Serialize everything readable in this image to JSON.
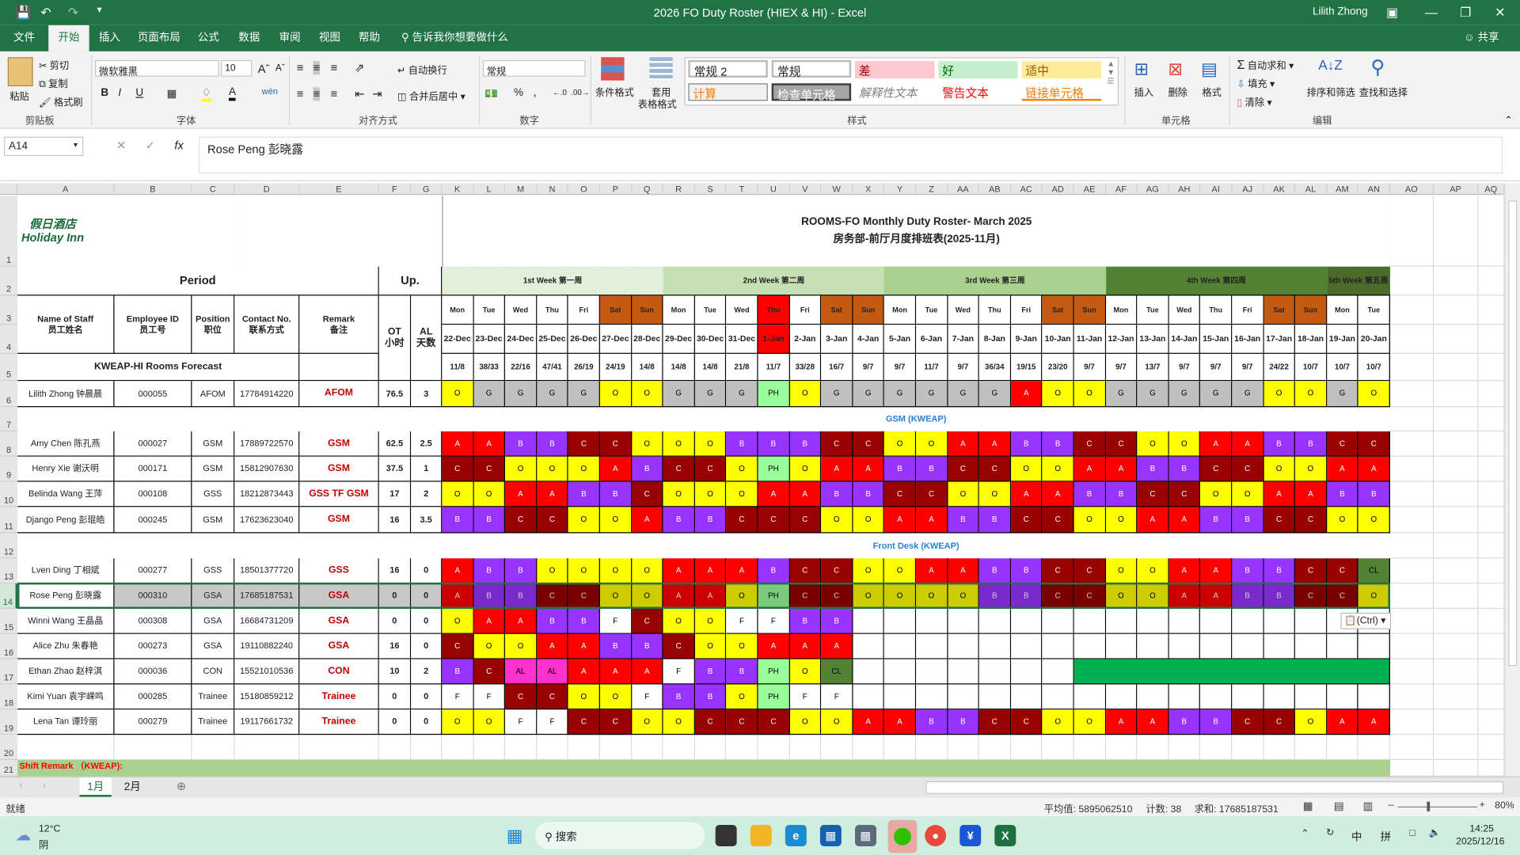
{
  "window": {
    "title": "2026 FO Duty Roster (HIEX & HI)  -  Excel",
    "user": "Lilith Zhong",
    "share": "共享"
  },
  "menu": {
    "tabs": [
      "文件",
      "开始",
      "插入",
      "页面布局",
      "公式",
      "数据",
      "审阅",
      "视图",
      "帮助"
    ],
    "active": "开始",
    "tell_me": "告诉我你想要做什么"
  },
  "ribbon": {
    "clipboard": {
      "paste": "粘贴",
      "cut": "剪切",
      "copy": "复制",
      "format_painter": "格式刷",
      "label": "剪贴板"
    },
    "font": {
      "name": "微软雅黑",
      "size": "10",
      "bold": "B",
      "italic": "I",
      "underline": "U",
      "label": "字体"
    },
    "alignment": {
      "wrap": "自动换行",
      "merge": "合并后居中",
      "label": "对齐方式"
    },
    "number": {
      "format": "常规",
      "percent": "%",
      "comma": ",",
      "label": "数字"
    },
    "styles": {
      "conditional": "条件格式",
      "table_line1": "套用",
      "table_line2": "表格格式",
      "normal2": "常规 2",
      "normal": "常规",
      "bad": "差",
      "good": "好",
      "neutral": "适中",
      "calc": "计算",
      "check": "检查单元格",
      "explanatory": "解释性文本",
      "warning": "警告文本",
      "linked": "链接单元格",
      "label": "样式"
    },
    "cells": {
      "insert": "插入",
      "delete": "删除",
      "format": "格式",
      "label": "单元格"
    },
    "editing": {
      "autosum": "自动求和",
      "fill": "填充",
      "clear": "清除",
      "sort": "排序和筛选",
      "find": "查找和选择",
      "label": "编辑"
    }
  },
  "formula_bar": {
    "name_box": "A14",
    "fx": "fx",
    "content": "Rose Peng 彭晓露"
  },
  "columns": [
    "A",
    "B",
    "C",
    "D",
    "E",
    "F",
    "G",
    "K",
    "L",
    "M",
    "N",
    "O",
    "P",
    "Q",
    "R",
    "S",
    "T",
    "U",
    "V",
    "W",
    "X",
    "Y",
    "Z",
    "AA",
    "AB",
    "AC",
    "AD",
    "AE",
    "AF",
    "AG",
    "AH",
    "AI",
    "AJ",
    "AK",
    "AL",
    "AM",
    "AN",
    "AO",
    "AP",
    "AQ"
  ],
  "logo": {
    "cn": "假日酒店",
    "en": "Holiday Inn"
  },
  "title": {
    "en": "ROOMS-FO Monthly Duty Roster- March 2025",
    "cn": "房务部-前厅月度排班表(2025-11月)"
  },
  "header": {
    "period": "Period",
    "up": "Up.",
    "name": "Name of Staff",
    "name_cn": "员工姓名",
    "emp": "Employee ID",
    "emp_cn": "员工号",
    "pos": "Position",
    "pos_cn": "职位",
    "contact": "Contact No.",
    "contact_cn": "联系方式",
    "remark": "Remark",
    "remark_cn": "备注",
    "ot": "OT",
    "ot_cn": "小时",
    "al": "AL",
    "al_cn": "天数",
    "forecast_label": "KWEAP-HI Rooms Forecast"
  },
  "weeks": [
    {
      "label": "1st Week 第一周",
      "color": "#e2efda"
    },
    {
      "label": "2nd Week 第二周",
      "color": "#c6e0b4"
    },
    {
      "label": "3rd Week 第三周",
      "color": "#a9d08e"
    },
    {
      "label": "4th Week 第四周",
      "color": "#548235"
    },
    {
      "label": "5th Week 第五周",
      "color": "#4b6b2a"
    }
  ],
  "days": [
    {
      "dow": "Mon",
      "date": "22-Dec",
      "forecast": "11/8"
    },
    {
      "dow": "Tue",
      "date": "23-Dec",
      "forecast": "38/33"
    },
    {
      "dow": "Wed",
      "date": "24-Dec",
      "forecast": "22/16"
    },
    {
      "dow": "Thu",
      "date": "25-Dec",
      "forecast": "47/41"
    },
    {
      "dow": "Fri",
      "date": "26-Dec",
      "forecast": "26/19"
    },
    {
      "dow": "Sat",
      "date": "27-Dec",
      "forecast": "24/19",
      "kind": "weekend"
    },
    {
      "dow": "Sun",
      "date": "28-Dec",
      "forecast": "14/8",
      "kind": "weekend"
    },
    {
      "dow": "Mon",
      "date": "29-Dec",
      "forecast": "14/8"
    },
    {
      "dow": "Tue",
      "date": "30-Dec",
      "forecast": "14/8"
    },
    {
      "dow": "Wed",
      "date": "31-Dec",
      "forecast": "21/8"
    },
    {
      "dow": "Thu",
      "date": "1-Jan",
      "forecast": "11/7",
      "kind": "holiday"
    },
    {
      "dow": "Fri",
      "date": "2-Jan",
      "forecast": "33/28"
    },
    {
      "dow": "Sat",
      "date": "3-Jan",
      "forecast": "16/7",
      "kind": "weekend"
    },
    {
      "dow": "Sun",
      "date": "4-Jan",
      "forecast": "9/7",
      "kind": "weekend"
    },
    {
      "dow": "Mon",
      "date": "5-Jan",
      "forecast": "9/7"
    },
    {
      "dow": "Tue",
      "date": "6-Jan",
      "forecast": "11/7"
    },
    {
      "dow": "Wed",
      "date": "7-Jan",
      "forecast": "9/7"
    },
    {
      "dow": "Thu",
      "date": "8-Jan",
      "forecast": "36/34"
    },
    {
      "dow": "Fri",
      "date": "9-Jan",
      "forecast": "19/15"
    },
    {
      "dow": "Sat",
      "date": "10-Jan",
      "forecast": "23/20",
      "kind": "weekend"
    },
    {
      "dow": "Sun",
      "date": "11-Jan",
      "forecast": "9/7",
      "kind": "weekend"
    },
    {
      "dow": "Mon",
      "date": "12-Jan",
      "forecast": "9/7"
    },
    {
      "dow": "Tue",
      "date": "13-Jan",
      "forecast": "13/7"
    },
    {
      "dow": "Wed",
      "date": "14-Jan",
      "forecast": "9/7"
    },
    {
      "dow": "Thu",
      "date": "15-Jan",
      "forecast": "9/7"
    },
    {
      "dow": "Fri",
      "date": "16-Jan",
      "forecast": "9/7"
    },
    {
      "dow": "Sat",
      "date": "17-Jan",
      "forecast": "24/22",
      "kind": "weekend"
    },
    {
      "dow": "Sun",
      "date": "18-Jan",
      "forecast": "10/7",
      "kind": "weekend"
    },
    {
      "dow": "Mon",
      "date": "19-Jan",
      "forecast": "10/7"
    },
    {
      "dow": "Tue",
      "date": "20-Jan",
      "forecast": "10/7"
    }
  ],
  "day_colors": {
    "weekend": "#c55a11",
    "holiday": "#ff0000"
  },
  "shift_colors": {
    "A": {
      "bg": "#ff0000",
      "fg": "#ffffff"
    },
    "B": {
      "bg": "#9933ff",
      "fg": "#ffffff"
    },
    "C": {
      "bg": "#990000",
      "fg": "#ffffff"
    },
    "O": {
      "bg": "#ffff00",
      "fg": "#000000"
    },
    "G": {
      "bg": "#c0c0c0",
      "fg": "#000000"
    },
    "PH": {
      "bg": "#99ff99",
      "fg": "#000000"
    },
    "F": {
      "bg": "#ffffff",
      "fg": "#000000"
    },
    "AL": {
      "bg": "#ff33cc",
      "fg": "#000000"
    },
    "CL": {
      "bg": "#548235",
      "fg": "#000000"
    }
  },
  "sections": {
    "gsm": "GSM (KWEAP)",
    "fd": "Front Desk (KWEAP)",
    "shift_remark": "Shift Remark （KWEAP):"
  },
  "staff": [
    {
      "name": "Lilith Zhong 钟晨晨",
      "id": "000055",
      "position": "AFOM",
      "contact": "17784914220",
      "remark": "AFOM",
      "ot": "76.5",
      "al": "3",
      "shifts": [
        "O",
        "G",
        "G",
        "G",
        "G",
        "O",
        "O",
        "G",
        "G",
        "G",
        "PH",
        "O",
        "G",
        "G",
        "G",
        "G",
        "G",
        "G",
        "A",
        "O",
        "O",
        "G",
        "G",
        "G",
        "G",
        "G",
        "O",
        "O",
        "G",
        "O"
      ]
    },
    {
      "name": "Amy Chen 陈孔燕",
      "id": "000027",
      "position": "GSM",
      "contact": "17889722570",
      "remark": "GSM",
      "ot": "62.5",
      "al": "2.5",
      "shifts": [
        "A",
        "A",
        "B",
        "B",
        "C",
        "C",
        "O",
        "O",
        "O",
        "B",
        "B",
        "B",
        "C",
        "C",
        "O",
        "O",
        "A",
        "A",
        "B",
        "B",
        "C",
        "C",
        "O",
        "O",
        "A",
        "A",
        "B",
        "B",
        "C",
        "C"
      ]
    },
    {
      "name": "Henry Xie 谢沃明",
      "id": "000171",
      "position": "GSM",
      "contact": "15812907630",
      "remark": "GSM",
      "ot": "37.5",
      "al": "1",
      "shifts": [
        "C",
        "C",
        "O",
        "O",
        "O",
        "A",
        "B",
        "C",
        "C",
        "O",
        "PH",
        "O",
        "A",
        "A",
        "B",
        "B",
        "C",
        "C",
        "O",
        "O",
        "A",
        "A",
        "B",
        "B",
        "C",
        "C",
        "O",
        "O",
        "A",
        "A"
      ]
    },
    {
      "name": "Belinda Wang 王萍",
      "id": "000108",
      "position": "GSS",
      "contact": "18212873443",
      "remark": "GSS TF GSM",
      "ot": "17",
      "al": "2",
      "shifts": [
        "O",
        "O",
        "A",
        "A",
        "B",
        "B",
        "C",
        "O",
        "O",
        "O",
        "A",
        "A",
        "B",
        "B",
        "C",
        "C",
        "O",
        "O",
        "A",
        "A",
        "B",
        "B",
        "C",
        "C",
        "O",
        "O",
        "A",
        "A",
        "B",
        "B"
      ]
    },
    {
      "name": "Django Peng 彭琨皓",
      "id": "000245",
      "position": "GSM",
      "contact": "17623623040",
      "remark": "GSM",
      "ot": "16",
      "al": "3.5",
      "shifts": [
        "B",
        "B",
        "C",
        "C",
        "O",
        "O",
        "A",
        "B",
        "B",
        "C",
        "C",
        "C",
        "O",
        "O",
        "A",
        "A",
        "B",
        "B",
        "C",
        "C",
        "O",
        "O",
        "A",
        "A",
        "B",
        "B",
        "C",
        "C",
        "O",
        "O"
      ]
    },
    {
      "name": "Lven Ding 丁相斌",
      "id": "000277",
      "position": "GSS",
      "contact": "18501377720",
      "remark": "GSS",
      "ot": "16",
      "al": "0",
      "shifts": [
        "A",
        "B",
        "B",
        "O",
        "O",
        "O",
        "O",
        "A",
        "A",
        "A",
        "B",
        "C",
        "C",
        "O",
        "O",
        "A",
        "A",
        "B",
        "B",
        "C",
        "C",
        "O",
        "O",
        "A",
        "A",
        "B",
        "B",
        "C",
        "C",
        "CL"
      ]
    },
    {
      "name": "Rose Peng 彭晓露",
      "id": "000310",
      "position": "GSA",
      "contact": "17685187531",
      "remark": "GSA",
      "ot": "0",
      "al": "0",
      "selected": true,
      "shifts": [
        "A",
        "B",
        "B",
        "C",
        "C",
        "O",
        "O",
        "A",
        "A",
        "O",
        "PH",
        "C",
        "C",
        "O",
        "O",
        "O",
        "O",
        "B",
        "B",
        "C",
        "C",
        "O",
        "O",
        "A",
        "A",
        "B",
        "B",
        "C",
        "C",
        "O"
      ]
    },
    {
      "name": "Winni Wang 王晶晶",
      "id": "000308",
      "position": "GSA",
      "contact": "16684731209",
      "remark": "GSA",
      "ot": "0",
      "al": "0",
      "shifts": [
        "O",
        "A",
        "A",
        "B",
        "B",
        "F",
        "C",
        "O",
        "O",
        "F",
        "F",
        "B",
        "B"
      ]
    },
    {
      "name": "Alice Zhu 朱春艳",
      "id": "000273",
      "position": "GSA",
      "contact": "19110882240",
      "remark": "GSA",
      "ot": "16",
      "al": "0",
      "shifts": [
        "C",
        "O",
        "O",
        "A",
        "A",
        "B",
        "B",
        "C",
        "O",
        "O",
        "A",
        "A",
        "A"
      ]
    },
    {
      "name": "Ethan Zhao 赵梓淇",
      "id": "000036",
      "position": "CON",
      "contact": "15521010536",
      "remark": "CON",
      "ot": "10",
      "al": "2",
      "shifts": [
        "B",
        "C",
        "AL",
        "AL",
        "A",
        "A",
        "A",
        "F",
        "B",
        "B",
        "PH",
        "O",
        "CL",
        "",
        "",
        "",
        "",
        "",
        "",
        ""
      ],
      "trailing_fill": "#00b050"
    },
    {
      "name": "Kimi Yuan 袁宇嵘鸣",
      "id": "000285",
      "position": "Trainee",
      "contact": "15180859212",
      "remark": "Trainee",
      "ot": "0",
      "al": "0",
      "shifts": [
        "F",
        "F",
        "C",
        "C",
        "O",
        "O",
        "F",
        "B",
        "B",
        "O",
        "PH",
        "F",
        "F"
      ]
    },
    {
      "name": "Lena Tan 谭玲丽",
      "id": "000279",
      "position": "Trainee",
      "contact": "19117661732",
      "remark": "Trainee",
      "ot": "0",
      "al": "0",
      "shifts": [
        "O",
        "O",
        "F",
        "F",
        "C",
        "C",
        "O",
        "O",
        "C",
        "C",
        "C",
        "O",
        "O",
        "A",
        "A",
        "B",
        "B",
        "C",
        "C",
        "O",
        "O",
        "A",
        "A",
        "B",
        "B",
        "C",
        "C",
        "O",
        "A",
        "A"
      ]
    }
  ],
  "paste_options": "(Ctrl)",
  "sheets": {
    "tabs": [
      "1月",
      "2月"
    ],
    "active": "1月"
  },
  "status": {
    "ready": "就绪",
    "average": "平均值: 5895062510",
    "count": "计数: 38",
    "sum": "求和: 17685187531",
    "zoom": "80%"
  },
  "taskbar": {
    "temp": "12°C",
    "weather": "阴",
    "search": "搜索",
    "time": "14:25",
    "date": "2025/12/16",
    "ime1": "中",
    "ime2": "拼"
  }
}
